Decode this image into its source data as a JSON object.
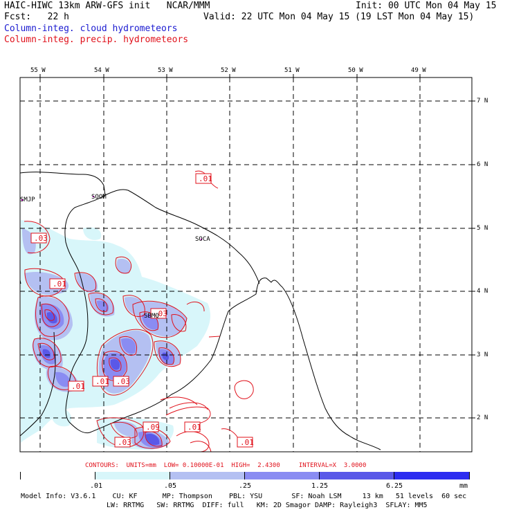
{
  "header": {
    "line1_left": "HAIC-HIWC 13km ARW-GFS init   NCAR/MMM",
    "line1_right": "Init: 00 UTC Mon 04 May 15",
    "line2_left": "Fcst:   22 h",
    "line2_right": "Valid: 22 UTC Mon 04 May 15 (19 LST Mon 04 May 15)",
    "field_cloud": "Column-integ. cloud hydrometeors",
    "field_precip": "Column-integ. precip. hydrometeors"
  },
  "colors": {
    "cloud": "#1a1ad0",
    "precip": "#e0101a",
    "station": "#c800c8",
    "shade_levels": [
      "#ffffff",
      "#d8f6fa",
      "#b4c0f2",
      "#8a8cf2",
      "#5a58e8",
      "#2c2cf0"
    ]
  },
  "axes": {
    "lon_labels": [
      "55 W",
      "54 W",
      "53 W",
      "52 W",
      "51 W",
      "50 W",
      "49 W"
    ],
    "lat_labels": [
      "7 N",
      "6 N",
      "5 N",
      "4 N",
      "3 N",
      "2 N"
    ]
  },
  "stations": [
    "SMJP",
    "SOOM",
    "SOCA",
    "SBMQ"
  ],
  "contour_labels": [
    ".01",
    ".03",
    ".01",
    ".03",
    ".01",
    ".01",
    ".03",
    ".09",
    ".01",
    ".03",
    ".01"
  ],
  "footer": {
    "contours_line": "CONTOURS:  UNITS=mm  LOW= 0.10000E-01  HIGH=  2.4300     INTERVAL=X  3.0000",
    "colorbar_levels": [
      ".01",
      ".05",
      ".25",
      "1.25",
      "6.25"
    ],
    "colorbar_unit": "mm",
    "model_line1": "Model Info: V3.6.1    CU: KF      MP: Thompson    PBL: YSU       SF: Noah LSM     13 km   51 levels  60 sec",
    "model_line2": "LW: RRTMG   SW: RRTMG  DIFF: full   KM: 2D Smagor DAMP: Rayleigh3  SFLAY: MM5"
  }
}
